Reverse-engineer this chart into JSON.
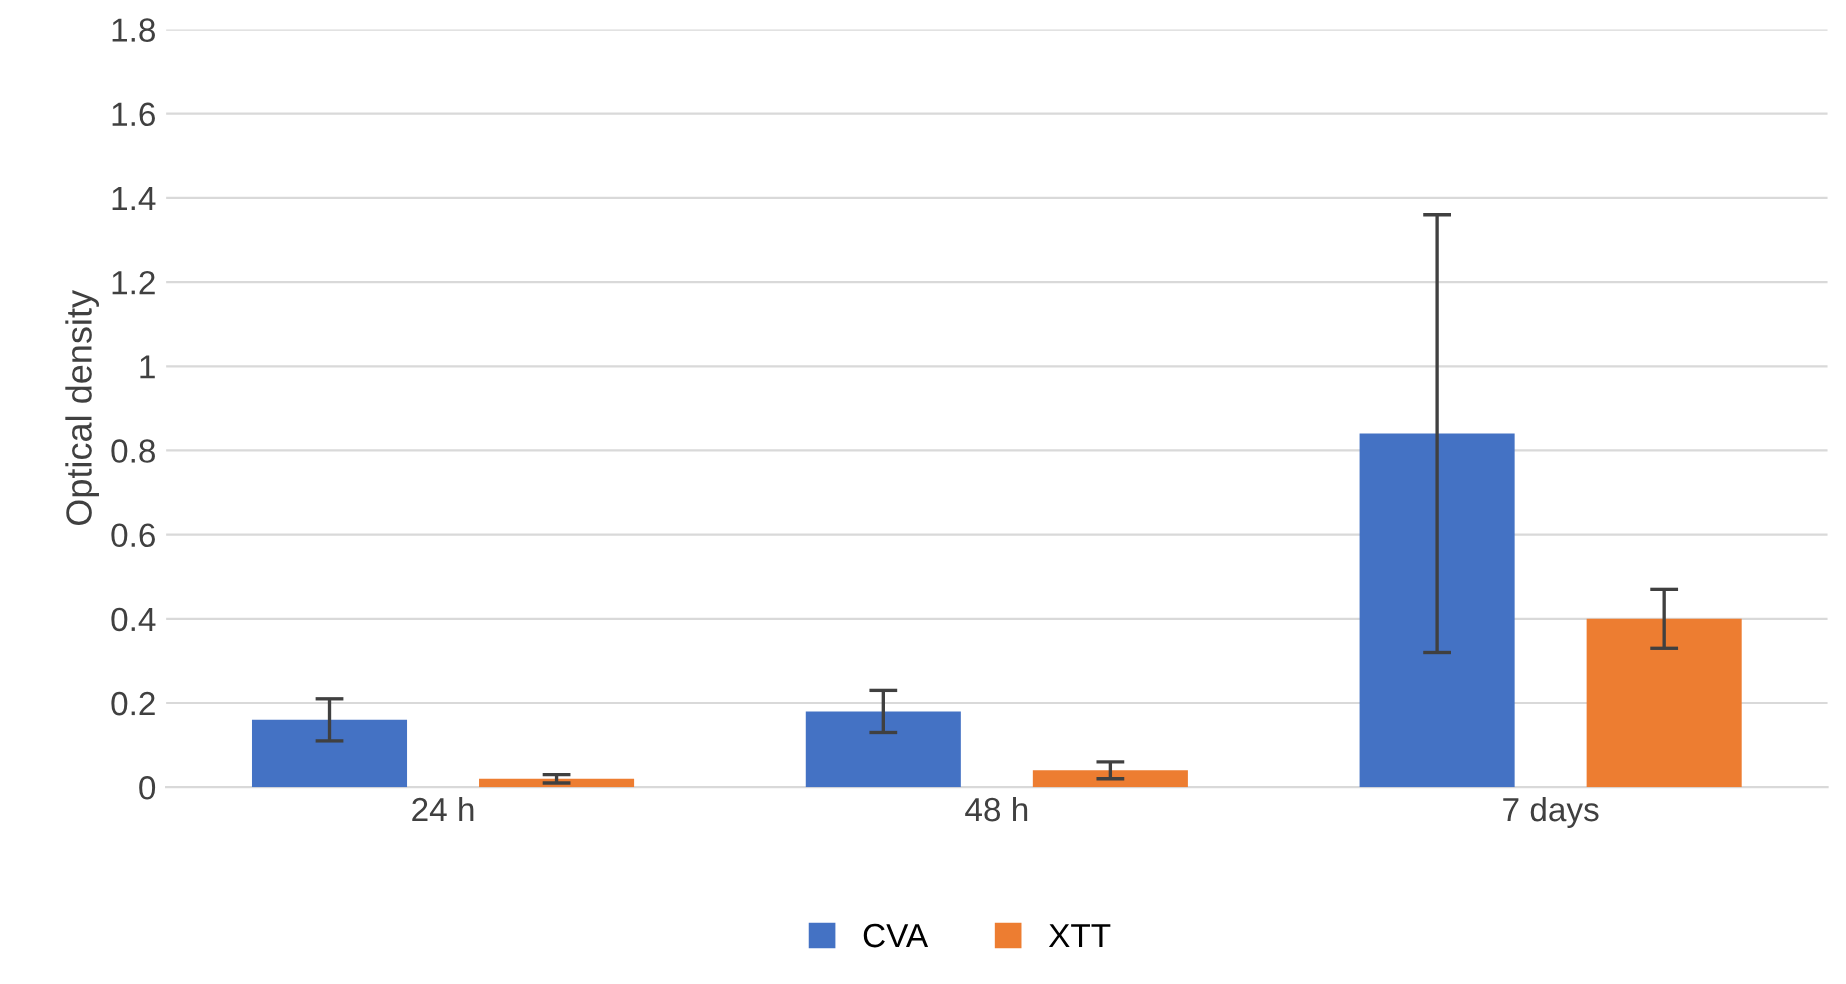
{
  "chart_data": {
    "type": "bar",
    "ylabel": "Optical density",
    "categories": [
      "24 h",
      "48 h",
      "7 days"
    ],
    "series": [
      {
        "name": "CVA",
        "color": "#4472c4",
        "values": [
          0.16,
          0.18,
          0.84
        ],
        "errors": [
          0.05,
          0.05,
          0.52
        ]
      },
      {
        "name": "XTT",
        "color": "#ed7d31",
        "values": [
          0.02,
          0.04,
          0.4
        ],
        "errors": [
          0.01,
          0.02,
          0.07
        ]
      }
    ],
    "ylim": [
      0,
      1.8
    ],
    "yticks": [
      0,
      0.2,
      0.4,
      0.6,
      0.8,
      1,
      1.2,
      1.4,
      1.6,
      1.8
    ],
    "grid": "y",
    "legend": "bottom"
  }
}
